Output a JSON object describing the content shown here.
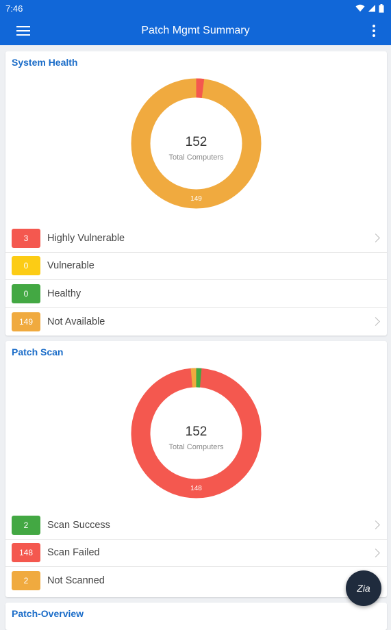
{
  "status_bar": {
    "time": "7:46"
  },
  "app_bar": {
    "title": "Patch Mgmt Summary"
  },
  "system_health": {
    "title": "System Health",
    "total": "152",
    "total_label": "Total Computers",
    "segment_label": "149",
    "items": [
      {
        "count": "3",
        "label": "Highly Vulnerable",
        "color": "#f4584f",
        "chevron": true
      },
      {
        "count": "0",
        "label": "Vulnerable",
        "color": "#fccc15",
        "chevron": false
      },
      {
        "count": "0",
        "label": "Healthy",
        "color": "#43a843",
        "chevron": false
      },
      {
        "count": "149",
        "label": "Not Available",
        "color": "#f0aa3f",
        "chevron": true
      }
    ]
  },
  "patch_scan": {
    "title": "Patch Scan",
    "total": "152",
    "total_label": "Total Computers",
    "segment_label": "148",
    "items": [
      {
        "count": "2",
        "label": "Scan Success",
        "color": "#43a843",
        "chevron": true
      },
      {
        "count": "148",
        "label": "Scan Failed",
        "color": "#f4584f",
        "chevron": true
      },
      {
        "count": "2",
        "label": "Not Scanned",
        "color": "#f0aa3f",
        "chevron": false
      }
    ]
  },
  "patch_overview": {
    "title": "Patch-Overview"
  },
  "fab": {
    "label": "Zia"
  }
}
